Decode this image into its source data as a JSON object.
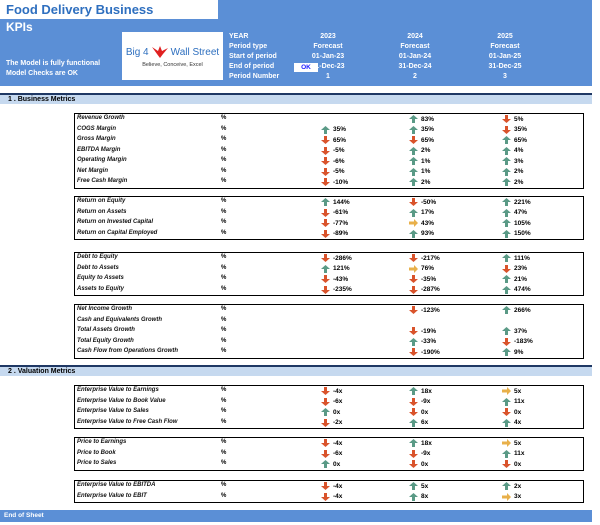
{
  "header": {
    "title": "Food Delivery Business",
    "subtitle": "KPIs",
    "status_lines": [
      "The Model is fully functional",
      "Model Checks are OK"
    ],
    "logo": {
      "brand_left": "Big 4",
      "brand_right": "Wall Street",
      "tagline": "Believe, Conceive, Excel",
      "icon": "eagle-icon"
    },
    "labels": [
      "YEAR",
      "Period type",
      "Start of period",
      "End of period",
      "Period Number"
    ],
    "check_badge": "OK",
    "periods": [
      {
        "year": "2023",
        "type": "Forecast",
        "start": "01-Jan-23",
        "end": "31-Dec-23",
        "number": "1"
      },
      {
        "year": "2024",
        "type": "Forecast",
        "start": "01-Jan-24",
        "end": "31-Dec-24",
        "number": "2"
      },
      {
        "year": "2025",
        "type": "Forecast",
        "start": "01-Jan-25",
        "end": "31-Dec-25",
        "number": "3"
      }
    ]
  },
  "colors": {
    "up": "#5a9a86",
    "down": "#d9532b",
    "flat": "#e8b04a",
    "header_blue": "#5b8fd6",
    "section_band": "#c6d9ef",
    "section_line": "#1f3864"
  },
  "sections": [
    {
      "title": "1 .  Business Metrics",
      "groups": [
        {
          "rows": [
            {
              "label": "Revenue Growth",
              "unit": "%",
              "values": [
                null,
                {
                  "v": "83%",
                  "d": "up"
                },
                {
                  "v": "5%",
                  "d": "down"
                }
              ]
            },
            {
              "label": "COGS Margin",
              "unit": "%",
              "values": [
                {
                  "v": "35%",
                  "d": "up"
                },
                {
                  "v": "35%",
                  "d": "up"
                },
                {
                  "v": "35%",
                  "d": "down"
                }
              ]
            },
            {
              "label": "Gross Margin",
              "unit": "%",
              "values": [
                {
                  "v": "65%",
                  "d": "down"
                },
                {
                  "v": "65%",
                  "d": "down"
                },
                {
                  "v": "65%",
                  "d": "up"
                }
              ]
            },
            {
              "label": "EBITDA Margin",
              "unit": "%",
              "values": [
                {
                  "v": "-5%",
                  "d": "down"
                },
                {
                  "v": "2%",
                  "d": "up"
                },
                {
                  "v": "4%",
                  "d": "up"
                }
              ]
            },
            {
              "label": "Operating Margin",
              "unit": "%",
              "values": [
                {
                  "v": "-6%",
                  "d": "down"
                },
                {
                  "v": "1%",
                  "d": "up"
                },
                {
                  "v": "3%",
                  "d": "up"
                }
              ]
            },
            {
              "label": "Net Margin",
              "unit": "%",
              "values": [
                {
                  "v": "-5%",
                  "d": "down"
                },
                {
                  "v": "1%",
                  "d": "up"
                },
                {
                  "v": "2%",
                  "d": "up"
                }
              ]
            },
            {
              "label": "Free Cash Margin",
              "unit": "%",
              "values": [
                {
                  "v": "-10%",
                  "d": "down"
                },
                {
                  "v": "2%",
                  "d": "up"
                },
                {
                  "v": "2%",
                  "d": "up"
                }
              ]
            }
          ]
        },
        {
          "rows": [
            {
              "label": "Return on Equity",
              "unit": "%",
              "values": [
                {
                  "v": "144%",
                  "d": "up"
                },
                {
                  "v": "-50%",
                  "d": "down"
                },
                {
                  "v": "221%",
                  "d": "up"
                }
              ]
            },
            {
              "label": "Return on Assets",
              "unit": "%",
              "values": [
                {
                  "v": "-61%",
                  "d": "down"
                },
                {
                  "v": "17%",
                  "d": "up"
                },
                {
                  "v": "47%",
                  "d": "up"
                }
              ]
            },
            {
              "label": "Return on Invested Capital",
              "unit": "%",
              "values": [
                {
                  "v": "-77%",
                  "d": "down"
                },
                {
                  "v": "43%",
                  "d": "flat"
                },
                {
                  "v": "105%",
                  "d": "up"
                }
              ]
            },
            {
              "label": "Return on Capital Employed",
              "unit": "%",
              "values": [
                {
                  "v": "-89%",
                  "d": "down"
                },
                {
                  "v": "93%",
                  "d": "up"
                },
                {
                  "v": "150%",
                  "d": "up"
                }
              ]
            }
          ]
        },
        {
          "rows": [
            {
              "label": "Debt to Equity",
              "unit": "%",
              "values": [
                {
                  "v": "-286%",
                  "d": "down"
                },
                {
                  "v": "-217%",
                  "d": "down"
                },
                {
                  "v": "111%",
                  "d": "up"
                }
              ]
            },
            {
              "label": "Debt to Assets",
              "unit": "%",
              "values": [
                {
                  "v": "121%",
                  "d": "up"
                },
                {
                  "v": "76%",
                  "d": "flat"
                },
                {
                  "v": "23%",
                  "d": "down"
                }
              ]
            },
            {
              "label": "Equity to Assets",
              "unit": "%",
              "values": [
                {
                  "v": "-43%",
                  "d": "down"
                },
                {
                  "v": "-35%",
                  "d": "down"
                },
                {
                  "v": "21%",
                  "d": "up"
                }
              ]
            },
            {
              "label": "Assets to Equity",
              "unit": "%",
              "values": [
                {
                  "v": "-235%",
                  "d": "down"
                },
                {
                  "v": "-287%",
                  "d": "down"
                },
                {
                  "v": "474%",
                  "d": "up"
                }
              ]
            }
          ]
        },
        {
          "rows": [
            {
              "label": "Net Income Growth",
              "unit": "%",
              "values": [
                null,
                {
                  "v": "-123%",
                  "d": "down"
                },
                {
                  "v": "266%",
                  "d": "up"
                }
              ]
            },
            {
              "label": "Cash and Equivalents Growth",
              "unit": "%",
              "values": [
                null,
                null,
                null
              ]
            },
            {
              "label": "Total Assets Growth",
              "unit": "%",
              "values": [
                null,
                {
                  "v": "-19%",
                  "d": "down"
                },
                {
                  "v": "37%",
                  "d": "up"
                }
              ]
            },
            {
              "label": "Total Equity Growth",
              "unit": "%",
              "values": [
                null,
                {
                  "v": "-33%",
                  "d": "up"
                },
                {
                  "v": "-183%",
                  "d": "down"
                }
              ]
            },
            {
              "label": "Cash Flow from Operations Growth",
              "unit": "%",
              "values": [
                null,
                {
                  "v": "-190%",
                  "d": "down"
                },
                {
                  "v": "9%",
                  "d": "up"
                }
              ]
            }
          ]
        }
      ]
    },
    {
      "title": "2 .  Valuation Metrics",
      "groups": [
        {
          "rows": [
            {
              "label": "Enterprise Value to Earnings",
              "unit": "%",
              "values": [
                {
                  "v": "-4x",
                  "d": "down"
                },
                {
                  "v": "18x",
                  "d": "up"
                },
                {
                  "v": "5x",
                  "d": "flat"
                }
              ]
            },
            {
              "label": "Enterprise Value to Book Value",
              "unit": "%",
              "values": [
                {
                  "v": "-6x",
                  "d": "down"
                },
                {
                  "v": "-9x",
                  "d": "down"
                },
                {
                  "v": "11x",
                  "d": "up"
                }
              ]
            },
            {
              "label": "Enterprise Value to Sales",
              "unit": "%",
              "values": [
                {
                  "v": "0x",
                  "d": "up"
                },
                {
                  "v": "0x",
                  "d": "down"
                },
                {
                  "v": "0x",
                  "d": "down"
                }
              ]
            },
            {
              "label": "Enterprise Value to Free Cash Flow",
              "unit": "%",
              "values": [
                {
                  "v": "-2x",
                  "d": "down"
                },
                {
                  "v": "6x",
                  "d": "up"
                },
                {
                  "v": "4x",
                  "d": "up"
                }
              ]
            }
          ]
        },
        {
          "rows": [
            {
              "label": "Price to Earnings",
              "unit": "%",
              "values": [
                {
                  "v": "-4x",
                  "d": "down"
                },
                {
                  "v": "18x",
                  "d": "up"
                },
                {
                  "v": "5x",
                  "d": "flat"
                }
              ]
            },
            {
              "label": "Price to Book",
              "unit": "%",
              "values": [
                {
                  "v": "-6x",
                  "d": "down"
                },
                {
                  "v": "-9x",
                  "d": "down"
                },
                {
                  "v": "11x",
                  "d": "up"
                }
              ]
            },
            {
              "label": "Price to Sales",
              "unit": "%",
              "values": [
                {
                  "v": "0x",
                  "d": "up"
                },
                {
                  "v": "0x",
                  "d": "down"
                },
                {
                  "v": "0x",
                  "d": "down"
                }
              ]
            }
          ]
        },
        {
          "rows": [
            {
              "label": "Enterprise Value to EBITDA",
              "unit": "%",
              "values": [
                {
                  "v": "-4x",
                  "d": "down"
                },
                {
                  "v": "5x",
                  "d": "up"
                },
                {
                  "v": "2x",
                  "d": "up"
                }
              ]
            },
            {
              "label": "Enterprise Value to EBIT",
              "unit": "%",
              "values": [
                {
                  "v": "-4x",
                  "d": "down"
                },
                {
                  "v": "8x",
                  "d": "up"
                },
                {
                  "v": "3x",
                  "d": "flat"
                }
              ]
            }
          ]
        }
      ]
    }
  ],
  "footer": {
    "label": "End of Sheet"
  }
}
